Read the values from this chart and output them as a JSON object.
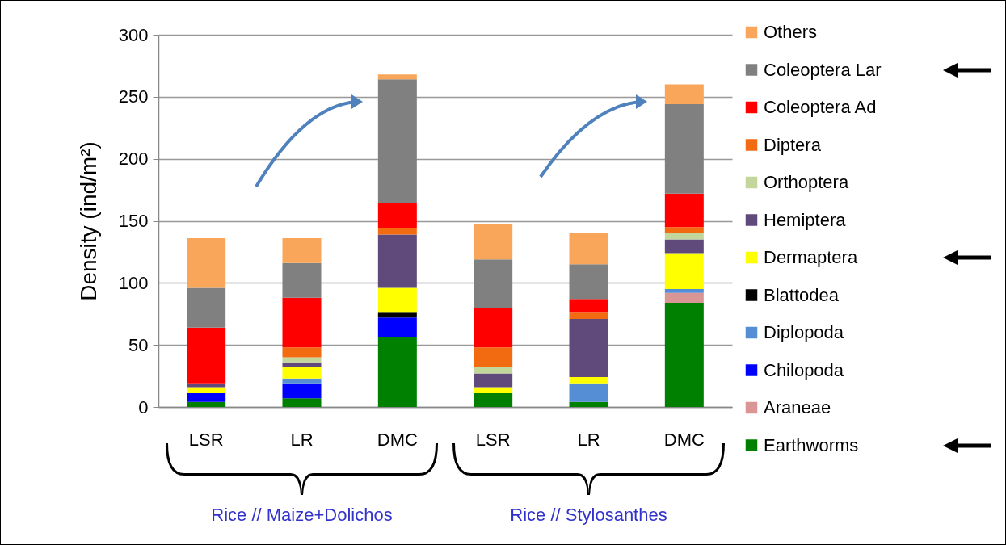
{
  "chart_data": {
    "type": "bar",
    "stacked": true,
    "ylabel": "Density (ind/m²)",
    "categories": [
      "LSR",
      "LR",
      "DMC",
      "LSR",
      "LR",
      "DMC"
    ],
    "series": [
      {
        "name": "Earthworms",
        "color": "#008000",
        "values": [
          4,
          7,
          56,
          11,
          4,
          84
        ]
      },
      {
        "name": "Araneae",
        "color": "#d99694",
        "values": [
          0,
          0,
          0,
          0,
          0,
          8
        ]
      },
      {
        "name": "Chilopoda",
        "color": "#0000ff",
        "values": [
          7,
          12,
          16,
          0,
          0,
          0
        ]
      },
      {
        "name": "Diplopoda",
        "color": "#558ed5",
        "values": [
          0,
          4,
          0,
          0,
          15,
          3
        ]
      },
      {
        "name": "Blattodea",
        "color": "#000000",
        "values": [
          0,
          0,
          4,
          0,
          0,
          0
        ]
      },
      {
        "name": "Dermaptera",
        "color": "#ffff00",
        "values": [
          5,
          9,
          20,
          5,
          5,
          29
        ]
      },
      {
        "name": "Hemiptera",
        "color": "#604a7b",
        "values": [
          3,
          4,
          43,
          11,
          47,
          11
        ]
      },
      {
        "name": "Orthoptera",
        "color": "#c3d69b",
        "values": [
          0,
          4,
          0,
          5,
          0,
          5
        ]
      },
      {
        "name": "Diptera",
        "color": "#f26b10",
        "values": [
          0,
          8,
          5,
          16,
          5,
          5
        ]
      },
      {
        "name": "Coleoptera Ad",
        "color": "#ff0000",
        "values": [
          45,
          40,
          20,
          32,
          11,
          27
        ]
      },
      {
        "name": "Coleoptera Lar",
        "color": "#808080",
        "values": [
          32,
          28,
          100,
          39,
          28,
          72
        ]
      },
      {
        "name": "Others",
        "color": "#f9a65a",
        "values": [
          40,
          20,
          4,
          28,
          25,
          16
        ]
      }
    ],
    "ylim": [
      0,
      300
    ],
    "yticks": [
      0,
      50,
      100,
      150,
      200,
      250,
      300
    ],
    "grid": "y",
    "legend": "right",
    "annotations": [
      "Rice // Maize+Dolichos",
      "Rice // Stylosanthes"
    ]
  }
}
